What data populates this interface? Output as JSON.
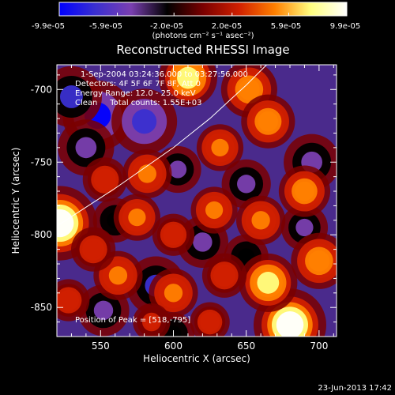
{
  "chart_data": {
    "type": "heatmap",
    "title": "Reconstructed RHESSI Image",
    "colorbar": {
      "ticks": [
        "-9.9e-05",
        "-5.9e-05",
        "-2.0e-05",
        "2.0e-05",
        "5.9e-05",
        "9.9e-05"
      ],
      "range": [
        -9.9e-05,
        9.9e-05
      ],
      "units_label": "(photons cm⁻² s⁻¹ asec⁻²)",
      "placement": "top",
      "colormap": [
        "#0000ff",
        "#3a2fd0",
        "#7a3fb0",
        "#000000",
        "#7a0000",
        "#d02000",
        "#ff8000",
        "#ffff80",
        "#ffffff"
      ]
    },
    "annotations": [
      "1-Sep-2004 03:24:36.000 to 03:27:56.000",
      "Detectors: 4F 5F 6F 7F 8F, Att 0",
      "Energy Range: 12.0 - 25.0 keV",
      "Clean     Total counts: 1.55E+03"
    ],
    "peak_label": "Position of Peak = [518,-795]",
    "xlabel": "Heliocentric X (arcsec)",
    "ylabel": "Heliocentric Y (arcsec)",
    "xticks": [
      "550",
      "600",
      "650",
      "700"
    ],
    "yticks": [
      "-700",
      "-750",
      "-800",
      "-850"
    ],
    "xlim": [
      520,
      712
    ],
    "ylim": [
      -870,
      -683
    ],
    "grid": false,
    "limb": [
      [
        520,
        -794
      ],
      [
        560,
        -768
      ],
      [
        600,
        -740
      ],
      [
        625,
        -720
      ],
      [
        650,
        -697
      ],
      [
        664,
        -683
      ]
    ],
    "peak": [
      518,
      -795
    ],
    "bright_sources": [
      {
        "x": 522,
        "y": -792,
        "intensity": 9.9e-05
      },
      {
        "x": 680,
        "y": -862,
        "intensity": 9.5e-05
      },
      {
        "x": 610,
        "y": -692,
        "intensity": 6.5e-05
      },
      {
        "x": 652,
        "y": -700,
        "intensity": 6e-05
      },
      {
        "x": 665,
        "y": -722,
        "intensity": 5.5e-05
      },
      {
        "x": 632,
        "y": -740,
        "intensity": 4e-05
      },
      {
        "x": 582,
        "y": -758,
        "intensity": 4.5e-05
      },
      {
        "x": 553,
        "y": -762,
        "intensity": 3.5e-05
      },
      {
        "x": 575,
        "y": -788,
        "intensity": 4e-05
      },
      {
        "x": 600,
        "y": -800,
        "intensity": 3e-05
      },
      {
        "x": 628,
        "y": -783,
        "intensity": 4e-05
      },
      {
        "x": 660,
        "y": -790,
        "intensity": 4.5e-05
      },
      {
        "x": 690,
        "y": -770,
        "intensity": 5e-05
      },
      {
        "x": 700,
        "y": -818,
        "intensity": 6e-05
      },
      {
        "x": 665,
        "y": -833,
        "intensity": 6.5e-05
      },
      {
        "x": 635,
        "y": -828,
        "intensity": 3.5e-05
      },
      {
        "x": 600,
        "y": -840,
        "intensity": 4.5e-05
      },
      {
        "x": 562,
        "y": -828,
        "intensity": 4.5e-05
      },
      {
        "x": 545,
        "y": -810,
        "intensity": 3.5e-05
      },
      {
        "x": 528,
        "y": -845,
        "intensity": 3e-05
      },
      {
        "x": 625,
        "y": -860,
        "intensity": 2.5e-05
      },
      {
        "x": 585,
        "y": -860,
        "intensity": 2e-05
      }
    ],
    "negative_sources": [
      {
        "x": 548,
        "y": -718,
        "intensity": -9e-05
      },
      {
        "x": 580,
        "y": -722,
        "intensity": -8e-05
      },
      {
        "x": 530,
        "y": -705,
        "intensity": -7e-05
      },
      {
        "x": 540,
        "y": -740,
        "intensity": -6e-05
      },
      {
        "x": 603,
        "y": -755,
        "intensity": -4e-05
      },
      {
        "x": 588,
        "y": -835,
        "intensity": -6.5e-05
      },
      {
        "x": 552,
        "y": -852,
        "intensity": -5e-05
      },
      {
        "x": 695,
        "y": -750,
        "intensity": -6e-05
      },
      {
        "x": 650,
        "y": -765,
        "intensity": -4.5e-05
      },
      {
        "x": 620,
        "y": -805,
        "intensity": -5e-05
      },
      {
        "x": 690,
        "y": -795,
        "intensity": -4e-05
      },
      {
        "x": 560,
        "y": -790,
        "intensity": -3.5e-05
      },
      {
        "x": 650,
        "y": -815,
        "intensity": -3.5e-05
      },
      {
        "x": 600,
        "y": -868,
        "intensity": -3e-05
      }
    ]
  },
  "footer": {
    "date": "23-Jun-2013 17:42"
  }
}
